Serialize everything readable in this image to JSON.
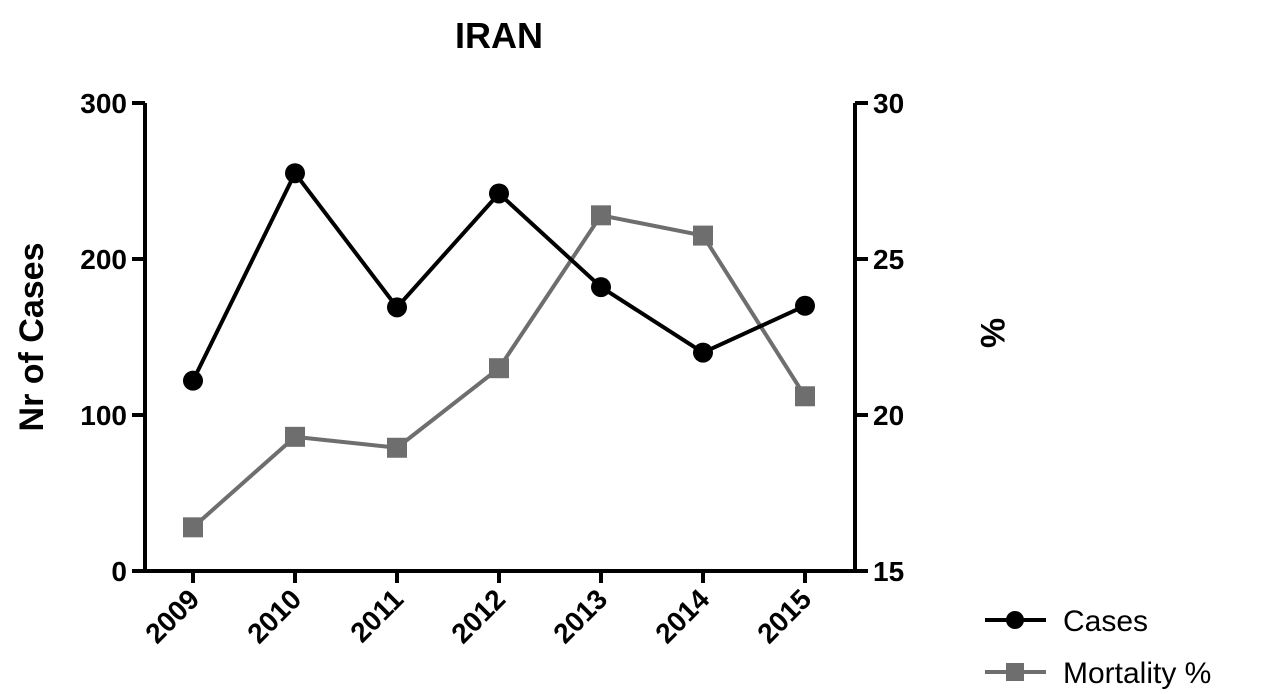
{
  "chart_data": {
    "type": "line",
    "title": "IRAN",
    "categories": [
      "2009",
      "2010",
      "2011",
      "2012",
      "2013",
      "2014",
      "2015"
    ],
    "y_left": {
      "label": "Nr of Cases",
      "lim": [
        0,
        300
      ],
      "ticks": [
        "0",
        "100",
        "200",
        "300"
      ]
    },
    "y_right": {
      "label": "%",
      "lim": [
        15,
        30
      ],
      "ticks": [
        "15",
        "20",
        "25",
        "30"
      ]
    },
    "series": [
      {
        "name": "Cases",
        "axis": "left",
        "marker": "circle",
        "color": "#000000",
        "values": [
          122,
          255,
          169,
          242,
          182,
          140,
          170
        ]
      },
      {
        "name": "Mortality %",
        "axis": "right",
        "marker": "square",
        "color": "#6e6e6e",
        "values": [
          16.4,
          19.3,
          18.95,
          21.5,
          26.4,
          25.75,
          20.6
        ]
      }
    ],
    "grid": false,
    "legend_position": "bottom-right"
  }
}
